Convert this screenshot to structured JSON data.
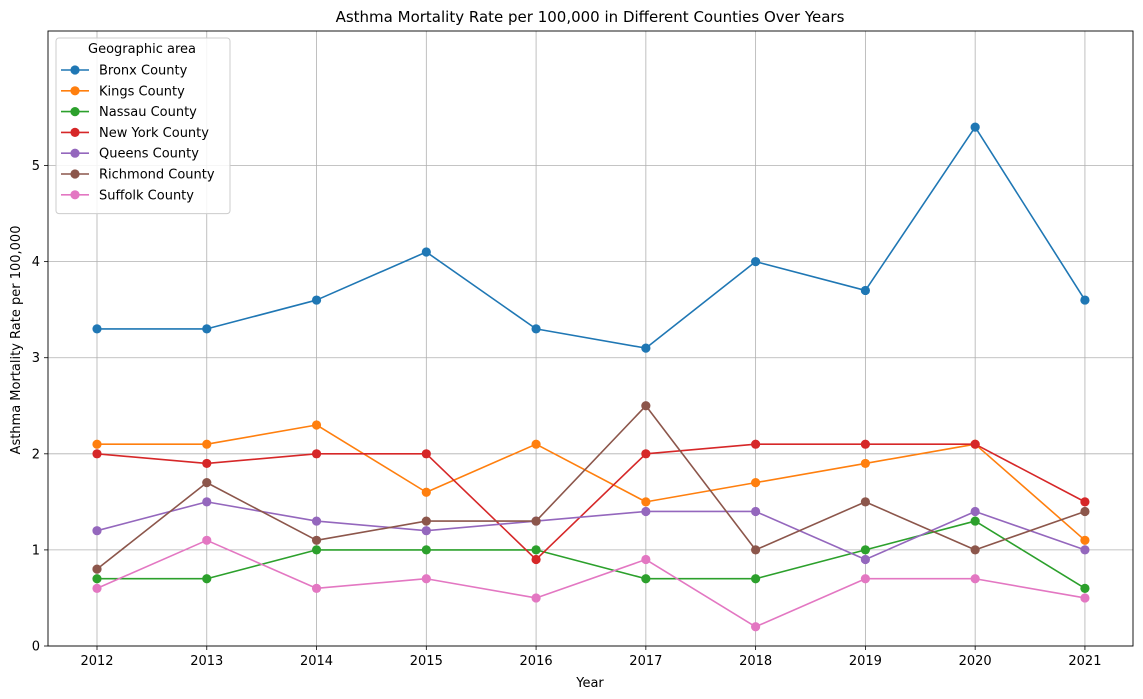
{
  "chart_data": {
    "type": "line",
    "title": "Asthma Mortality Rate per 100,000 in Different Counties Over Years",
    "xlabel": "Year",
    "ylabel": "Asthma Mortality Rate per 100,000",
    "x": [
      "2012",
      "2013",
      "2014",
      "2015",
      "2016",
      "2017",
      "2018",
      "2019",
      "2020",
      "2021"
    ],
    "yticks": [
      0,
      1,
      2,
      3,
      4,
      5
    ],
    "ylim": [
      0,
      6.4
    ],
    "grid": true,
    "legend": {
      "title": "Geographic area",
      "placement": "top-left"
    },
    "series": [
      {
        "name": "Bronx County",
        "color": "#1f77b4",
        "values": [
          3.3,
          3.3,
          3.6,
          4.1,
          3.3,
          3.1,
          4.0,
          3.7,
          5.4,
          3.6
        ]
      },
      {
        "name": "Kings County",
        "color": "#ff7f0e",
        "values": [
          2.1,
          2.1,
          2.3,
          1.6,
          2.1,
          1.5,
          1.7,
          1.9,
          2.1,
          1.1
        ]
      },
      {
        "name": "Nassau County",
        "color": "#2ca02c",
        "values": [
          0.7,
          0.7,
          1.0,
          1.0,
          1.0,
          0.7,
          0.7,
          1.0,
          1.3,
          0.6
        ]
      },
      {
        "name": "New York County",
        "color": "#d62728",
        "values": [
          2.0,
          1.9,
          2.0,
          2.0,
          0.9,
          2.0,
          2.1,
          2.1,
          2.1,
          1.5
        ]
      },
      {
        "name": "Queens County",
        "color": "#9467bd",
        "values": [
          1.2,
          1.5,
          1.3,
          1.2,
          1.3,
          1.4,
          1.4,
          0.9,
          1.4,
          1.0
        ]
      },
      {
        "name": "Richmond County",
        "color": "#8c564b",
        "values": [
          0.8,
          1.7,
          1.1,
          1.3,
          1.3,
          2.5,
          1.0,
          1.5,
          1.0,
          1.4
        ]
      },
      {
        "name": "Suffolk County",
        "color": "#e377c2",
        "values": [
          0.6,
          1.1,
          0.6,
          0.7,
          0.5,
          0.9,
          0.2,
          0.7,
          0.7,
          0.5
        ]
      }
    ]
  }
}
